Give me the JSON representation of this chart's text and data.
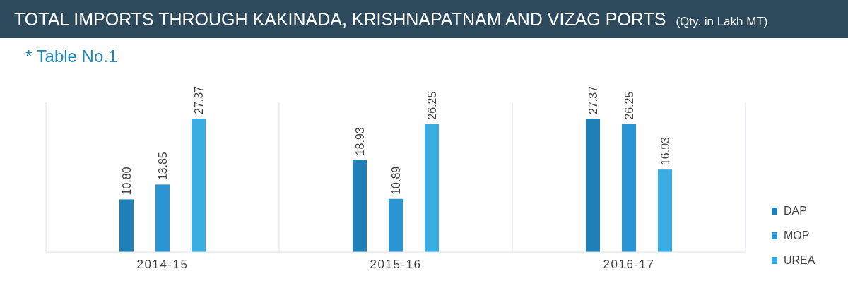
{
  "chart_data": {
    "type": "bar",
    "title": "TOTAL IMPORTS THROUGH KAKINADA, KRISHNAPATNAM AND VIZAG PORTS",
    "subtitle": "(Qty. in Lakh MT)",
    "annotations": [
      "* Table No.1"
    ],
    "categories": [
      "2014-15",
      "2015-16",
      "2016-17"
    ],
    "series": [
      {
        "name": "DAP",
        "color": "#1f80b8",
        "values": [
          10.8,
          18.93,
          27.37
        ],
        "value_labels": [
          "10.80",
          "18.93",
          "27.37"
        ]
      },
      {
        "name": "MOP",
        "color": "#2b95d3",
        "values": [
          13.85,
          10.89,
          26.25
        ],
        "value_labels": [
          "13.85",
          "10.89",
          "26.25"
        ]
      },
      {
        "name": "UREA",
        "color": "#3aaee3",
        "values": [
          27.37,
          26.25,
          16.93
        ],
        "value_labels": [
          "27.37",
          "26.25",
          "16.93"
        ]
      }
    ],
    "legend": "right"
  }
}
